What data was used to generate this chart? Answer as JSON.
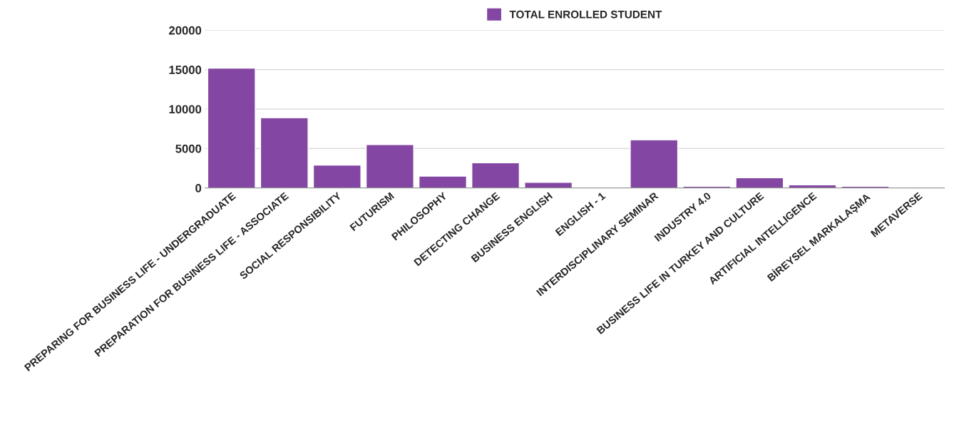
{
  "chart_data": {
    "type": "bar",
    "categories": [
      "PREPARING FOR BUSINESS LIFE - UNDERGRADUATE",
      "PREPARATION FOR BUSINESS LIFE - ASSOCIATE",
      "SOCIAL RESPONSIBILITY",
      "FUTURISM",
      "PHILOSOPHY",
      "DETECTING CHANGE",
      "BUSINESS ENGLISH",
      "ENGLISH - 1",
      "INTERDISCIPLINARY SEMINAR",
      "INDUSTRY 4.0",
      "BUSINESS LIFE IN TURKEY AND CULTURE",
      "ARTIFICIAL INTELLIGENCE",
      "BİREYSEL MARKALAŞMA",
      "METAVERSE"
    ],
    "series": [
      {
        "name": "TOTAL ENROLLED STUDENT",
        "color": "#8346a2",
        "values": [
          15200,
          8900,
          2900,
          5500,
          1500,
          3200,
          700,
          20,
          6100,
          200,
          1300,
          400,
          200,
          100
        ]
      }
    ],
    "ylim": [
      0,
      20000
    ],
    "yticks": [
      0,
      5000,
      10000,
      15000,
      20000
    ],
    "grid": "y",
    "legend": "top"
  }
}
